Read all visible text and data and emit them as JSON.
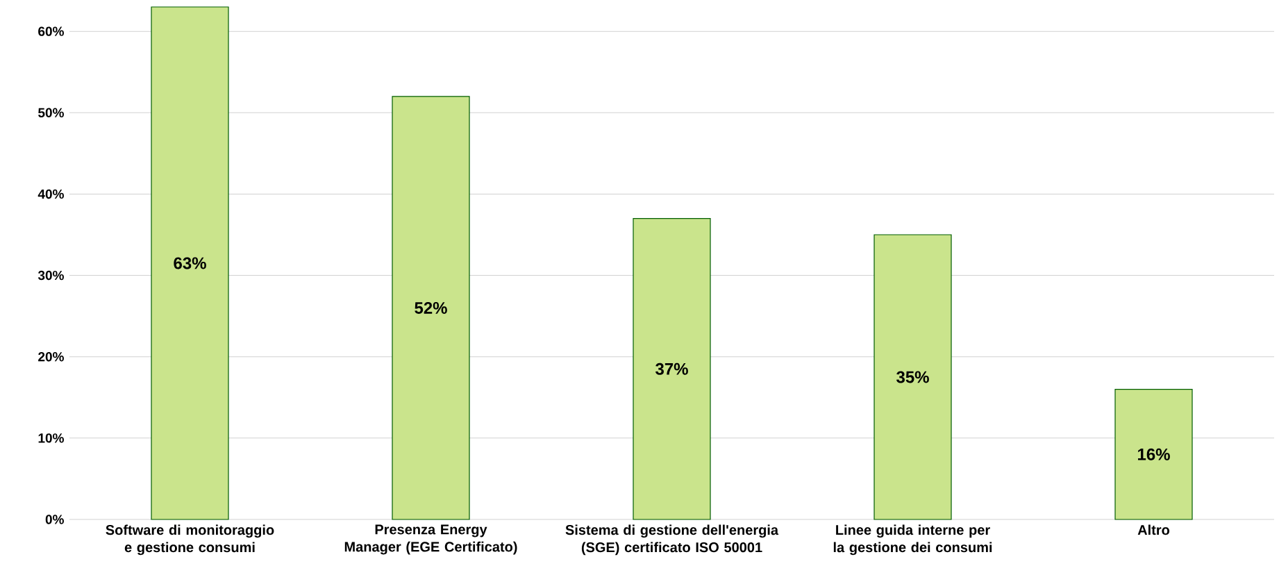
{
  "chart_data": {
    "type": "bar",
    "categories": [
      "Software di monitoraggio e gestione consumi",
      "Presenza Energy Manager (EGE Certificato)",
      "Sistema di gestione dell'energia (SGE) certificato ISO 50001",
      "Linee guida interne per la gestione dei consumi",
      "Altro"
    ],
    "values": [
      63,
      52,
      37,
      35,
      16
    ],
    "value_labels": [
      "63%",
      "52%",
      "37%",
      "35%",
      "16%"
    ],
    "color": "#cae48c",
    "ylim": [
      0,
      63
    ],
    "yticks": [
      {
        "value": 0,
        "label": "0%"
      },
      {
        "value": 10,
        "label": "10%"
      },
      {
        "value": 20,
        "label": "20%"
      },
      {
        "value": 30,
        "label": "30%"
      },
      {
        "value": 40,
        "label": "40%"
      },
      {
        "value": 50,
        "label": "50%"
      },
      {
        "value": 60,
        "label": "60%"
      }
    ],
    "grid": "y"
  }
}
